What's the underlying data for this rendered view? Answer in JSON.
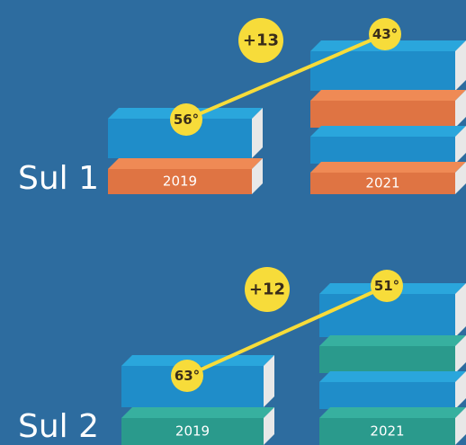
{
  "rows": [
    {
      "label": "Sul 1",
      "years": [
        "2019",
        "2021"
      ],
      "ranks": [
        "56°",
        "43°"
      ],
      "change": "+13"
    },
    {
      "label": "Sul 2",
      "years": [
        "2019",
        "2021"
      ],
      "ranks": [
        "63°",
        "51°"
      ],
      "change": "+12"
    }
  ]
}
